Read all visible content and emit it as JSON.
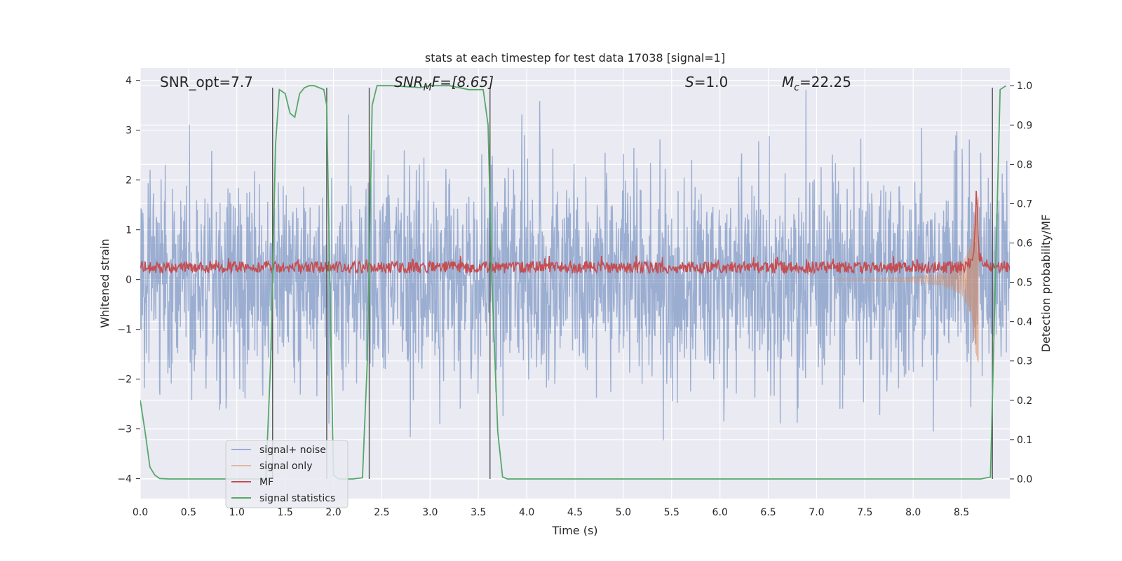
{
  "chart_data": {
    "type": "line",
    "title": "stats at each timestep for test data 17038 [signal=1]",
    "xlabel": "Time (s)",
    "ylabel_left": "Whitened strain",
    "ylabel_right": "Detection probability/MF",
    "xlim": [
      0.0,
      9.0
    ],
    "ylim_left": [
      -4.4,
      4.25
    ],
    "ylim_right": [
      -0.05,
      1.045
    ],
    "x_ticks": [
      0.0,
      0.5,
      1.0,
      1.5,
      2.0,
      2.5,
      3.0,
      3.5,
      4.0,
      4.5,
      5.0,
      5.5,
      6.0,
      6.5,
      7.0,
      7.5,
      8.0,
      8.5
    ],
    "x_tick_labels": [
      "0.0",
      "0.5",
      "1.0",
      "1.5",
      "2.0",
      "2.5",
      "3.0",
      "3.5",
      "4.0",
      "4.5",
      "5.0",
      "5.5",
      "6.0",
      "6.5",
      "7.0",
      "7.5",
      "8.0",
      "8.5"
    ],
    "y_left_ticks": [
      -4,
      -3,
      -2,
      -1,
      0,
      1,
      2,
      3,
      4
    ],
    "y_left_tick_labels": [
      "−4",
      "−3",
      "−2",
      "−1",
      "0",
      "1",
      "2",
      "3",
      "4"
    ],
    "y_right_ticks": [
      0.0,
      0.1,
      0.2,
      0.3,
      0.4,
      0.5,
      0.6,
      0.7,
      0.8,
      0.9,
      1.0
    ],
    "y_right_tick_labels": [
      "0.0",
      "0.1",
      "0.2",
      "0.3",
      "0.4",
      "0.5",
      "0.6",
      "0.7",
      "0.8",
      "0.9",
      "1.0"
    ],
    "grid": true,
    "legend_position": "lower-left",
    "annotations": {
      "snr_opt": "SNR_opt=7.7",
      "snr_mf_main": "SNR",
      "snr_mf_sub": "M",
      "snr_mf_rest": "F=[8.65]",
      "s_var": "S",
      "s_rest": "=1.0",
      "mc_var": "M",
      "mc_sub": "c",
      "mc_rest": "=22.25"
    },
    "vertical_lines_x": [
      1.37,
      1.93,
      2.37,
      3.62,
      8.82
    ],
    "series": [
      {
        "name": "signal+ noise",
        "color": "#4c72b0",
        "opacity": 0.5,
        "axis": "left",
        "description": "dense whitened strain noise, approx amplitude band [-1.6, 1.6] with spikes to about ±3.8"
      },
      {
        "name": "signal only",
        "color": "#dd8452",
        "opacity": 0.5,
        "axis": "left",
        "chirp_envelope": {
          "x": [
            7.5,
            8.0,
            8.3,
            8.5,
            8.6,
            8.65,
            8.68
          ],
          "amplitude": [
            0.02,
            0.06,
            0.12,
            0.3,
            0.7,
            1.55,
            1.7
          ]
        }
      },
      {
        "name": "MF",
        "color": "#c44e52",
        "axis": "right",
        "description": "matched filter output fluctuating near 0.52-0.56 with chirp peak near 8.65 s"
      },
      {
        "name": "signal statistics",
        "color": "#55a868",
        "axis": "right",
        "x": [
          0.0,
          0.05,
          0.1,
          0.15,
          0.2,
          0.3,
          1.2,
          1.3,
          1.35,
          1.4,
          1.44,
          1.5,
          1.55,
          1.6,
          1.65,
          1.7,
          1.75,
          1.8,
          1.85,
          1.9,
          1.93,
          1.97,
          2.0,
          2.05,
          2.1,
          2.2,
          2.3,
          2.35,
          2.4,
          2.45,
          2.5,
          2.6,
          2.9,
          3.0,
          3.2,
          3.4,
          3.55,
          3.6,
          3.64,
          3.7,
          3.75,
          3.8,
          3.9,
          8.7,
          8.8,
          8.85,
          8.9,
          8.96
        ],
        "y": [
          0.2,
          0.12,
          0.03,
          0.01,
          0.001,
          0.0,
          0.0,
          0.0,
          0.3,
          0.85,
          0.99,
          0.98,
          0.93,
          0.92,
          0.98,
          0.995,
          1.0,
          1.0,
          0.995,
          0.99,
          0.95,
          0.4,
          0.01,
          0.0,
          0.0,
          0.0,
          0.003,
          0.3,
          0.95,
          1.0,
          1.0,
          1.0,
          0.995,
          1.0,
          1.0,
          0.99,
          0.99,
          0.9,
          0.5,
          0.12,
          0.005,
          0.0,
          0.0,
          0.0,
          0.005,
          0.5,
          0.99,
          1.0
        ]
      }
    ]
  }
}
